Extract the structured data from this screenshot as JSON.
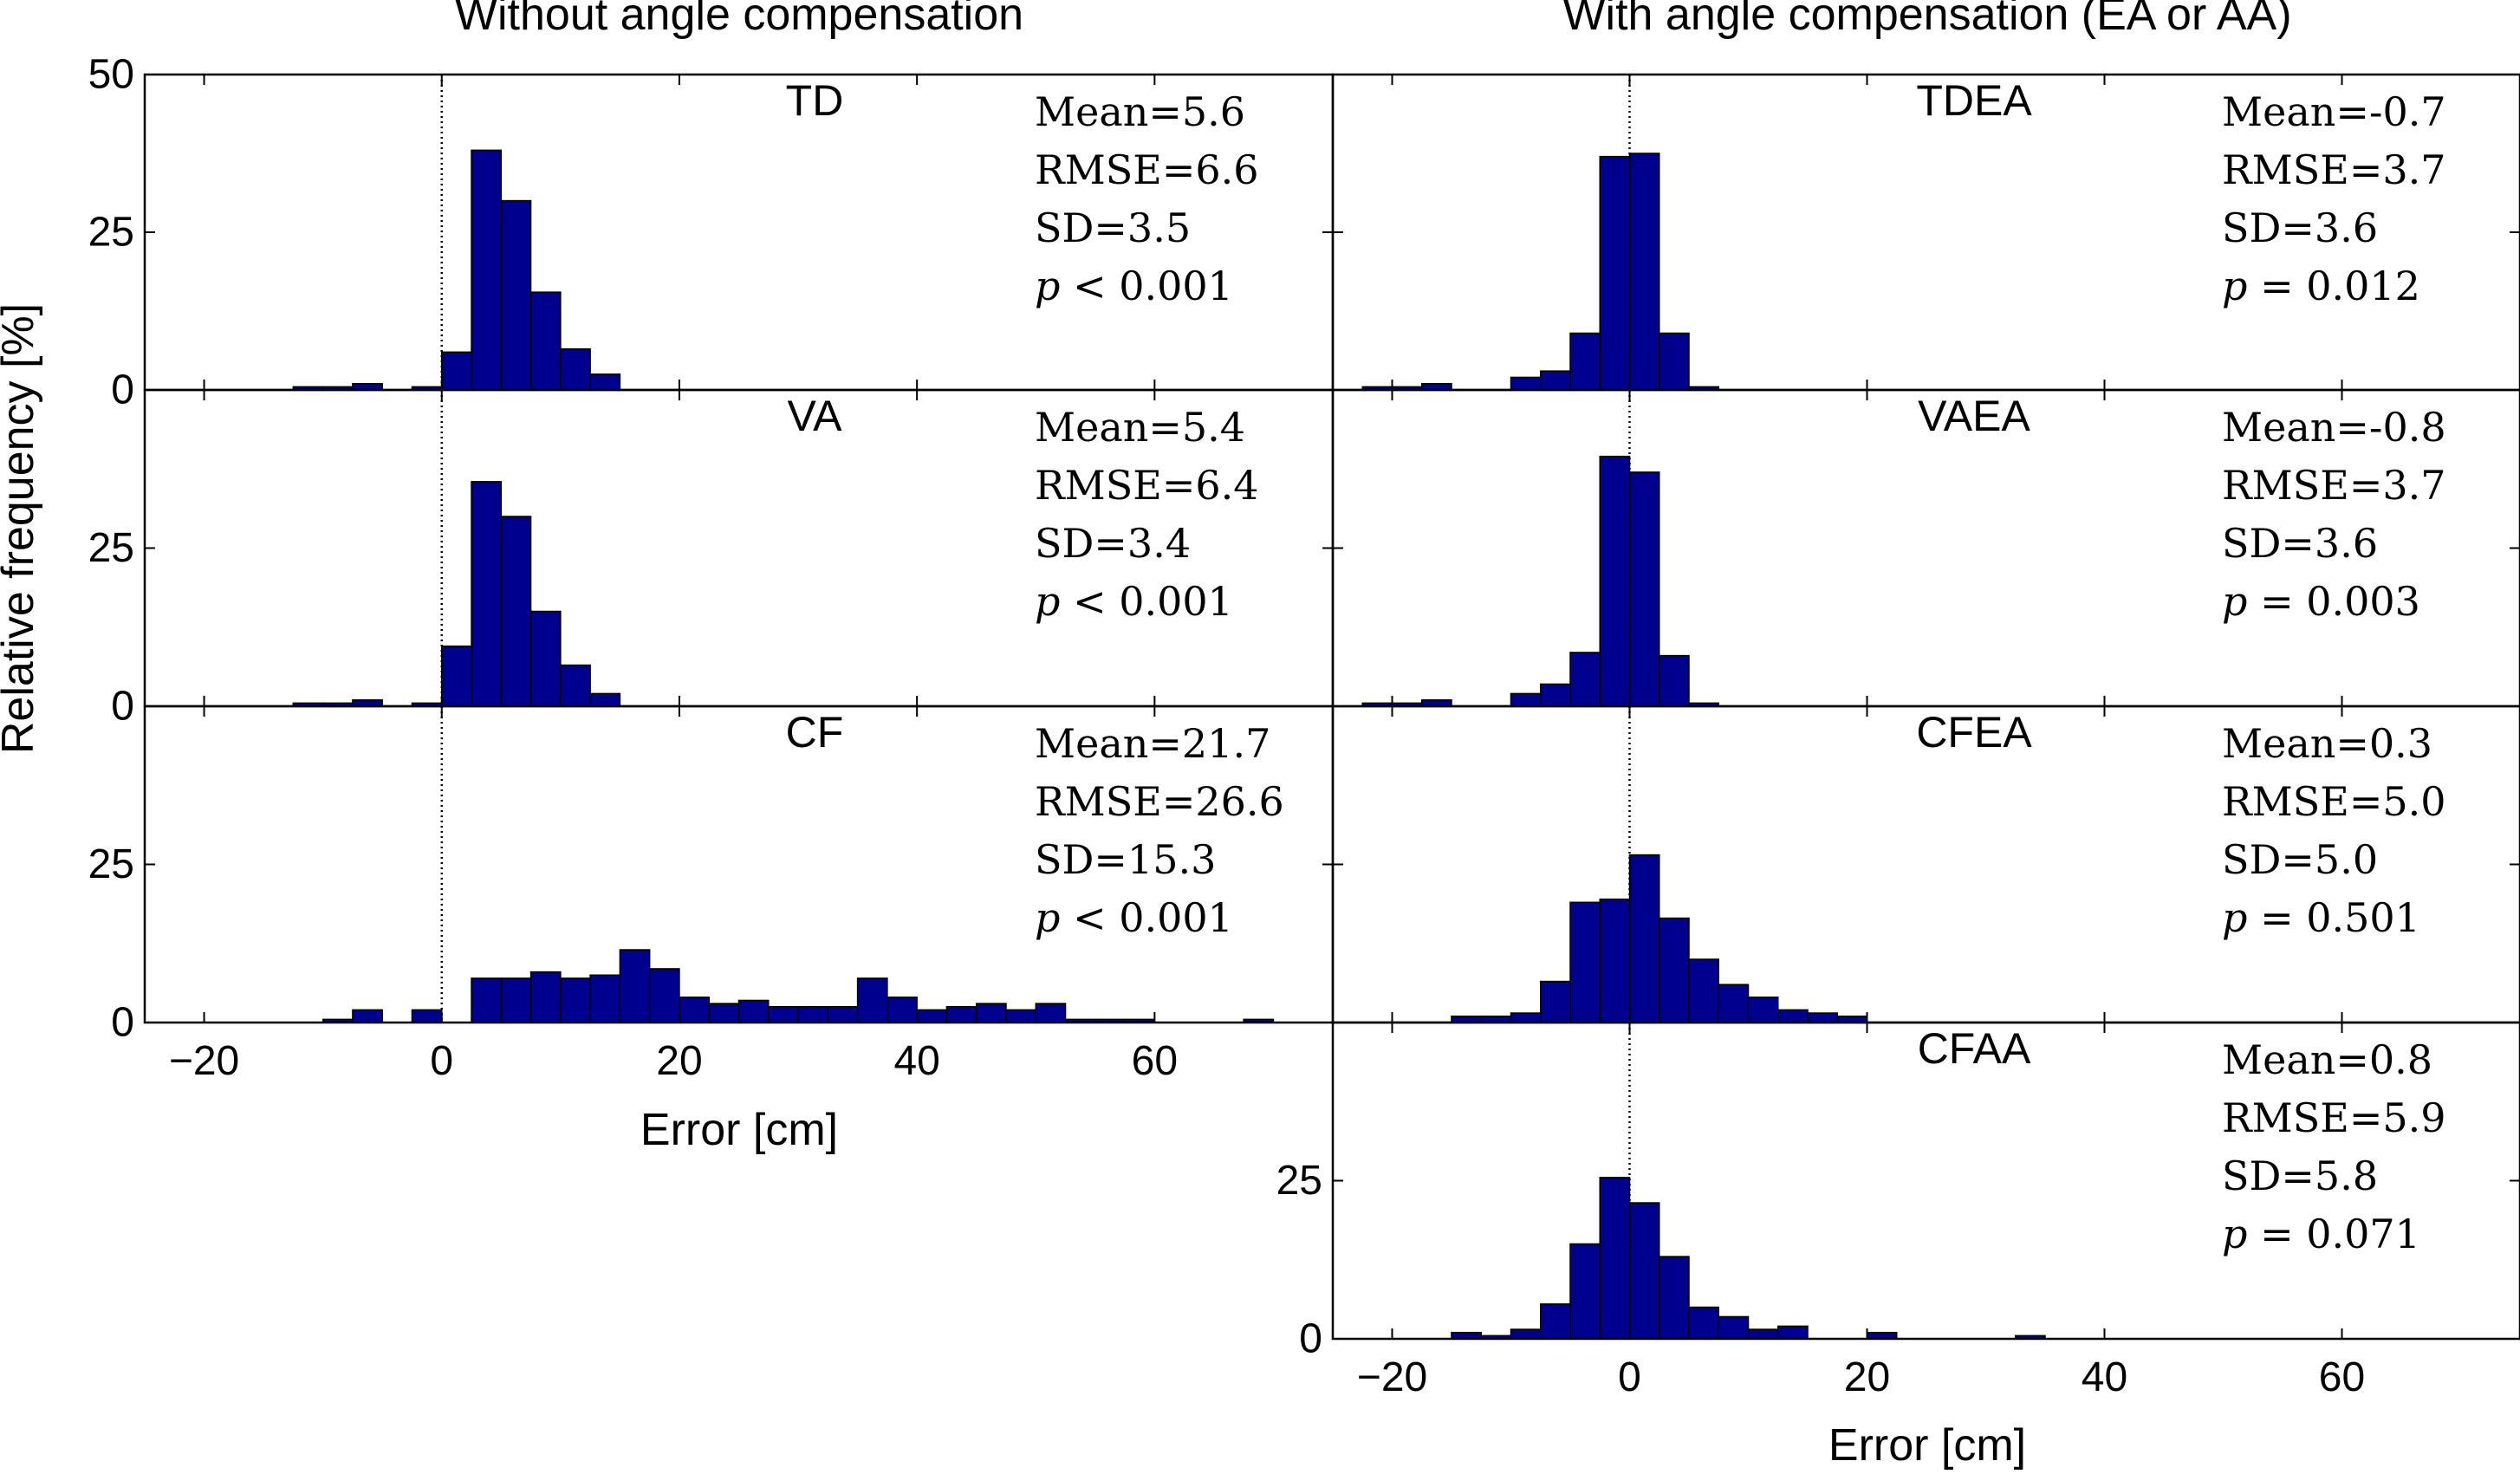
{
  "figure": {
    "left_title": "Without angle compensation",
    "right_title": "With angle compensation (EA or AA)",
    "ylabel": "Relative frequency [%]",
    "xlabel": "Error [cm]",
    "bar_color": "#00008f",
    "bar_edge_color": "#000000"
  },
  "chart_data": [
    {
      "type": "bar",
      "name": "TD",
      "label": "TD",
      "column": "left",
      "row": 0,
      "xlim": [
        -25,
        75
      ],
      "ylim": [
        0,
        50
      ],
      "yticks": [
        "0",
        "25",
        "50"
      ],
      "xticks": [],
      "bin_width": 2.5,
      "bins": [
        [
          -12.5,
          0.5
        ],
        [
          -10,
          0.5
        ],
        [
          -7.5,
          1
        ],
        [
          -2.5,
          0.5
        ],
        [
          0,
          6
        ],
        [
          2.5,
          38
        ],
        [
          5,
          30
        ],
        [
          7.5,
          15.5
        ],
        [
          10,
          6.5
        ],
        [
          12.5,
          2.5
        ]
      ],
      "stats": [
        "Mean=5.6",
        "RMSE=6.6",
        "SD=3.5"
      ],
      "p_op": "<",
      "p_val": "0.001"
    },
    {
      "type": "bar",
      "name": "VA",
      "label": "VA",
      "column": "left",
      "row": 1,
      "xlim": [
        -25,
        75
      ],
      "ylim": [
        0,
        50
      ],
      "yticks": [
        "0",
        "25"
      ],
      "xticks": [],
      "bin_width": 2.5,
      "bins": [
        [
          -12.5,
          0.5
        ],
        [
          -10,
          0.5
        ],
        [
          -7.5,
          1
        ],
        [
          -2.5,
          0.5
        ],
        [
          0,
          9.5
        ],
        [
          2.5,
          35.5
        ],
        [
          5,
          30
        ],
        [
          7.5,
          15
        ],
        [
          10,
          6.5
        ],
        [
          12.5,
          2
        ]
      ],
      "stats": [
        "Mean=5.4",
        "RMSE=6.4",
        "SD=3.4"
      ],
      "p_op": "<",
      "p_val": "0.001"
    },
    {
      "type": "bar",
      "name": "CF",
      "label": "CF",
      "column": "left",
      "row": 2,
      "xlim": [
        -25,
        75
      ],
      "ylim": [
        0,
        50
      ],
      "yticks": [
        "0",
        "25"
      ],
      "xticks": [
        "−20",
        "0",
        "20",
        "40",
        "60"
      ],
      "bin_width": 2.5,
      "bins": [
        [
          -10,
          0.5
        ],
        [
          -7.5,
          2
        ],
        [
          -2.5,
          2
        ],
        [
          2.5,
          7
        ],
        [
          5,
          7
        ],
        [
          7.5,
          8
        ],
        [
          10,
          7
        ],
        [
          12.5,
          7.5
        ],
        [
          15,
          11.5
        ],
        [
          17.5,
          8.5
        ],
        [
          20,
          4
        ],
        [
          22.5,
          3
        ],
        [
          25,
          3.5
        ],
        [
          27.5,
          2.5
        ],
        [
          30,
          2.5
        ],
        [
          32.5,
          2.5
        ],
        [
          35,
          7
        ],
        [
          37.5,
          4
        ],
        [
          40,
          2
        ],
        [
          42.5,
          2.5
        ],
        [
          45,
          3
        ],
        [
          47.5,
          2
        ],
        [
          50,
          3
        ],
        [
          52.5,
          0.5
        ],
        [
          55,
          0.5
        ],
        [
          57.5,
          0.5
        ],
        [
          67.5,
          0.5
        ]
      ],
      "stats": [
        "Mean=21.7",
        "RMSE=26.6",
        "SD=15.3"
      ],
      "p_op": "<",
      "p_val": "0.001"
    },
    {
      "type": "bar",
      "name": "TDEA",
      "label": "TDEA",
      "column": "right",
      "row": 0,
      "xlim": [
        -25,
        75
      ],
      "ylim": [
        0,
        50
      ],
      "yticks": [],
      "xticks": [],
      "bin_width": 2.5,
      "bins": [
        [
          -22.5,
          0.5
        ],
        [
          -20,
          0.5
        ],
        [
          -17.5,
          1
        ],
        [
          -10,
          2
        ],
        [
          -7.5,
          3
        ],
        [
          -5,
          9
        ],
        [
          -2.5,
          37
        ],
        [
          0,
          37.5
        ],
        [
          2.5,
          9
        ],
        [
          5,
          0.5
        ]
      ],
      "stats": [
        "Mean=-0.7",
        "RMSE=3.7",
        "SD=3.6"
      ],
      "p_op": "=",
      "p_val": "0.012"
    },
    {
      "type": "bar",
      "name": "VAEA",
      "label": "VAEA",
      "column": "right",
      "row": 1,
      "xlim": [
        -25,
        75
      ],
      "ylim": [
        0,
        50
      ],
      "yticks": [],
      "xticks": [],
      "bin_width": 2.5,
      "bins": [
        [
          -22.5,
          0.5
        ],
        [
          -20,
          0.5
        ],
        [
          -17.5,
          1
        ],
        [
          -10,
          2
        ],
        [
          -7.5,
          3.5
        ],
        [
          -5,
          8.5
        ],
        [
          -2.5,
          39.5
        ],
        [
          0,
          37
        ],
        [
          2.5,
          8
        ],
        [
          5,
          0.5
        ]
      ],
      "stats": [
        "Mean=-0.8",
        "RMSE=3.7",
        "SD=3.6"
      ],
      "p_op": "=",
      "p_val": "0.003"
    },
    {
      "type": "bar",
      "name": "CFEA",
      "label": "CFEA",
      "column": "right",
      "row": 2,
      "xlim": [
        -25,
        75
      ],
      "ylim": [
        0,
        50
      ],
      "yticks": [],
      "xticks": [],
      "bin_width": 2.5,
      "bins": [
        [
          -15,
          1
        ],
        [
          -12.5,
          1
        ],
        [
          -10,
          1.5
        ],
        [
          -7.5,
          6.5
        ],
        [
          -5,
          19
        ],
        [
          -2.5,
          19.5
        ],
        [
          0,
          26.5
        ],
        [
          2.5,
          16.5
        ],
        [
          5,
          10
        ],
        [
          7.5,
          6
        ],
        [
          10,
          4
        ],
        [
          12.5,
          2
        ],
        [
          15,
          1.5
        ],
        [
          17.5,
          1
        ]
      ],
      "stats": [
        "Mean=0.3",
        "RMSE=5.0",
        "SD=5.0"
      ],
      "p_op": "=",
      "p_val": "0.501"
    },
    {
      "type": "bar",
      "name": "CFAA",
      "label": "CFAA",
      "column": "right",
      "row": 3,
      "xlim": [
        -25,
        75
      ],
      "ylim": [
        0,
        50
      ],
      "yticks": [
        "0",
        "25"
      ],
      "xticks": [
        "−20",
        "0",
        "20",
        "40",
        "60"
      ],
      "bin_width": 2.5,
      "bins": [
        [
          -15,
          1
        ],
        [
          -12.5,
          0.5
        ],
        [
          -10,
          1.5
        ],
        [
          -7.5,
          5.5
        ],
        [
          -5,
          15
        ],
        [
          -2.5,
          25.5
        ],
        [
          0,
          21.5
        ],
        [
          2.5,
          13
        ],
        [
          5,
          5
        ],
        [
          7.5,
          3.5
        ],
        [
          10,
          1.5
        ],
        [
          12.5,
          2
        ],
        [
          20,
          1
        ],
        [
          32.5,
          0.5
        ]
      ],
      "stats": [
        "Mean=0.8",
        "RMSE=5.9",
        "SD=5.8"
      ],
      "p_op": "=",
      "p_val": "0.071"
    }
  ]
}
